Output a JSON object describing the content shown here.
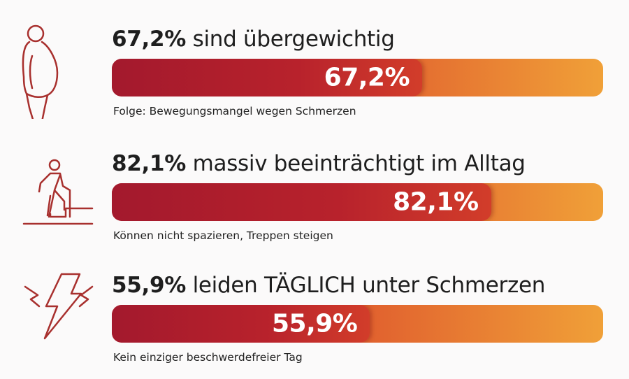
{
  "chart_data": {
    "type": "bar",
    "orientation": "horizontal",
    "xlim": [
      0,
      100
    ],
    "unit": "%",
    "colors": {
      "fill_start": "#a3192d",
      "fill_end": "#d23d2a",
      "track_start": "#c42f2d",
      "track_end": "#f0a038",
      "icon": "#a8302e"
    },
    "items": [
      {
        "icon": "overweight-person-icon",
        "value": 67.2,
        "value_label": "67,2%",
        "title_bold": "67,2%",
        "title_rest": " sind übergewichtig",
        "subtitle": "Folge: Bewegungsmangel wegen Schmerzen"
      },
      {
        "icon": "person-climbing-stairs-with-cane-icon",
        "value": 82.1,
        "value_label": "82,1%",
        "title_bold": "82,1%",
        "title_rest": " massiv beeinträchtigt im Alltag",
        "subtitle": "Können nicht spazieren, Treppen steigen"
      },
      {
        "icon": "lightning-pain-icon",
        "value": 55.9,
        "value_label": "55,9%",
        "title_bold": "55,9%",
        "title_rest": " leiden TÄGLICH unter Schmerzen",
        "subtitle": "Kein einziger beschwerdefreier Tag"
      }
    ]
  }
}
